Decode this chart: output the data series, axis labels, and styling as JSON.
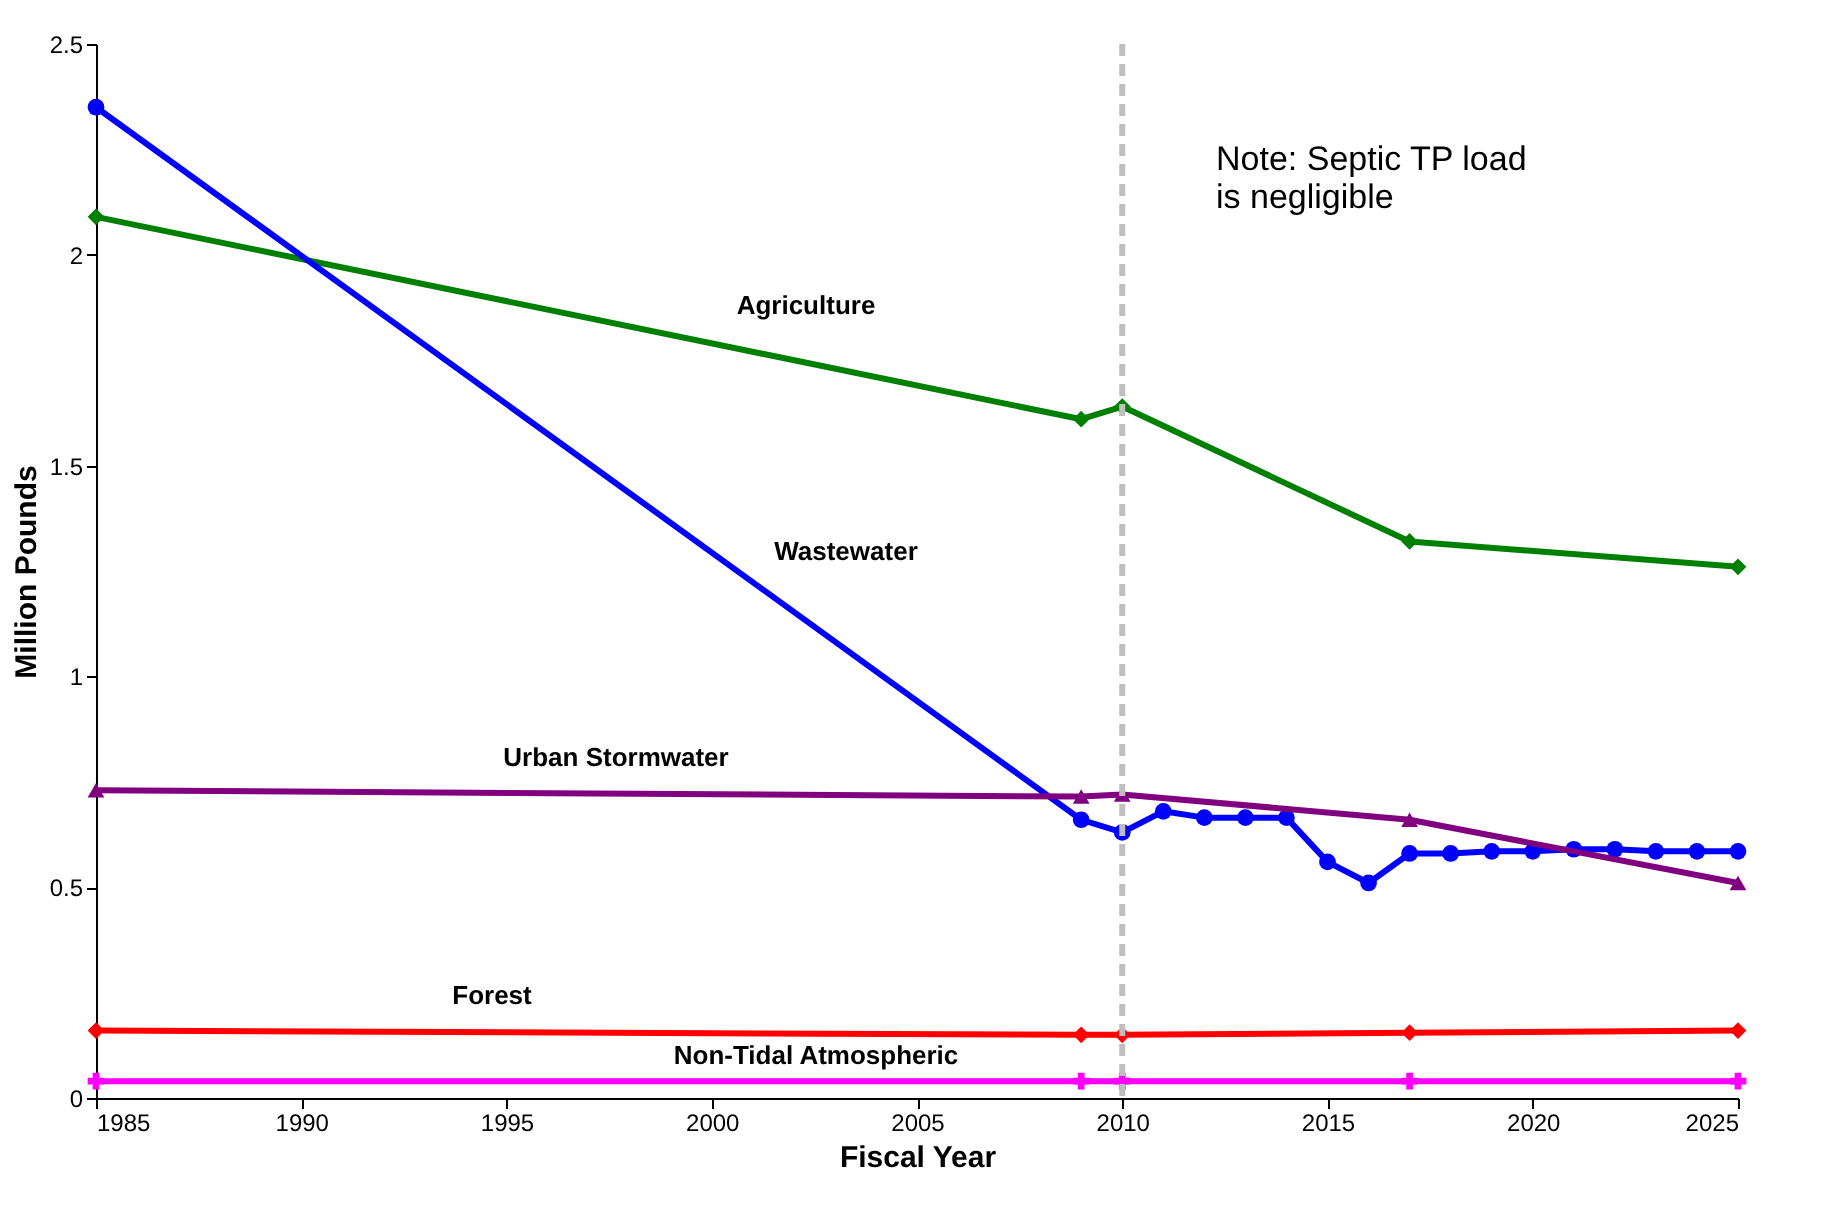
{
  "chart_data": {
    "type": "line",
    "xlabel": "Fiscal Year",
    "ylabel": "Million Pounds",
    "xlim": [
      1985,
      2025
    ],
    "xticks": [
      1985,
      1990,
      1995,
      2000,
      2005,
      2010,
      2015,
      2020,
      2025
    ],
    "ylim": [
      0,
      2.5
    ],
    "yticks": [
      0,
      0.5,
      1,
      1.5,
      2,
      2.5
    ],
    "grid": false,
    "legend": false,
    "series": [
      {
        "name": "Agriculture",
        "color": "#008000",
        "marker": "diamond",
        "x": [
          1985,
          2009,
          2010,
          2017,
          2025
        ],
        "values": [
          2.09,
          1.61,
          1.64,
          1.32,
          1.26
        ]
      },
      {
        "name": "Wastewater",
        "color": "#0000ff",
        "marker": "circle",
        "x": [
          1985,
          2009,
          2010,
          2011,
          2012,
          2013,
          2014,
          2015,
          2016,
          2017,
          2018,
          2019,
          2020,
          2021,
          2022,
          2023,
          2024,
          2025
        ],
        "values": [
          2.35,
          0.66,
          0.63,
          0.68,
          0.665,
          0.665,
          0.665,
          0.56,
          0.51,
          0.58,
          0.58,
          0.585,
          0.585,
          0.59,
          0.59,
          0.585,
          0.585,
          0.585
        ]
      },
      {
        "name": "Urban Stormwater",
        "color": "#800080",
        "marker": "triangle",
        "x": [
          1985,
          2009,
          2010,
          2017,
          2025
        ],
        "values": [
          0.73,
          0.715,
          0.72,
          0.66,
          0.51
        ]
      },
      {
        "name": "Forest",
        "color": "#ff0000",
        "marker": "diamond",
        "x": [
          1985,
          2009,
          2010,
          2017,
          2025
        ],
        "values": [
          0.16,
          0.15,
          0.15,
          0.155,
          0.16
        ]
      },
      {
        "name": "Non-Tidal Atmospheric",
        "color": "#ff00ff",
        "marker": "cross",
        "x": [
          1985,
          2009,
          2010,
          2017,
          2025
        ],
        "values": [
          0.04,
          0.04,
          0.04,
          0.04,
          0.04
        ]
      }
    ],
    "ref_lines": [
      {
        "axis": "x",
        "value": 2010,
        "color": "#bfbfbf",
        "line_style": "dashed"
      }
    ],
    "annotations": [
      "Note: Septic TP load\n      is negligible"
    ]
  }
}
